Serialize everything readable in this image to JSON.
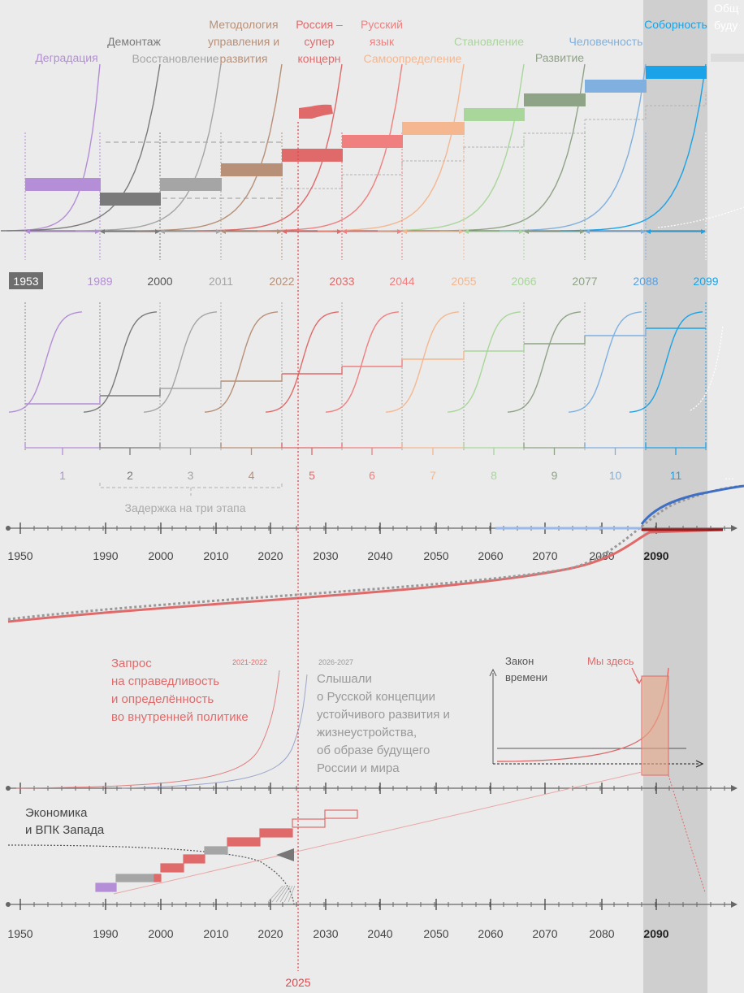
{
  "colors": {
    "background": "#ebebeb",
    "shade": "#cfcfcf",
    "axis": "#666666",
    "marker_2025": "#e0474c",
    "stages": [
      "#b48ed6",
      "#7a7a7a",
      "#a5a5a5",
      "#b89078",
      "#e06a6a",
      "#f07f7f",
      "#f5b78f",
      "#a9d69a",
      "#8fa386",
      "#7fb0e0",
      "#1aa3e8"
    ]
  },
  "top_section": {
    "stage_names": [
      [
        "Деградация"
      ],
      [
        "Демонтаж"
      ],
      [
        "Восстановление"
      ],
      [
        "Методология",
        "управления и",
        "развития"
      ],
      [
        "Россия –",
        "супер",
        "концерн"
      ],
      [
        "Русский",
        "язык"
      ],
      [
        "Самоопределение"
      ],
      [
        "Становление"
      ],
      [
        "Развитие"
      ],
      [
        "Человечность"
      ],
      [
        "Соборность"
      ],
      [
        "Общ",
        "буду"
      ]
    ],
    "year_labels": [
      "1953",
      "1989",
      "2000",
      "2011",
      "2022",
      "2033",
      "2044",
      "2055",
      "2066",
      "2077",
      "2088",
      "2099"
    ]
  },
  "middle_section": {
    "stage_numbers": [
      "1",
      "2",
      "3",
      "4",
      "5",
      "6",
      "7",
      "8",
      "9",
      "10",
      "11",
      "..."
    ],
    "delay_label": "Задержка на три этапа"
  },
  "timeline": {
    "ticks": [
      "1950",
      "1990",
      "2000",
      "2010",
      "2020",
      "2030",
      "2040",
      "2050",
      "2060",
      "2070",
      "2080",
      "2090"
    ]
  },
  "lower_section": {
    "request_text": [
      "Запрос",
      "на справедливость",
      "и определённость",
      "во внутренней политике"
    ],
    "request_years": "2021-2022",
    "heard_years": "2026-2027",
    "heard_text": [
      "Слышали",
      "о Русской концепции",
      "устойчивого развития и",
      "жизнеустройства,",
      "об образе будущего",
      "России и мира"
    ],
    "law_of_time": [
      "Закон",
      "времени"
    ],
    "we_are_here": "Мы здесь",
    "west_economy": [
      "Экономика",
      "и ВПК Запада"
    ]
  },
  "marker_year": "2025"
}
